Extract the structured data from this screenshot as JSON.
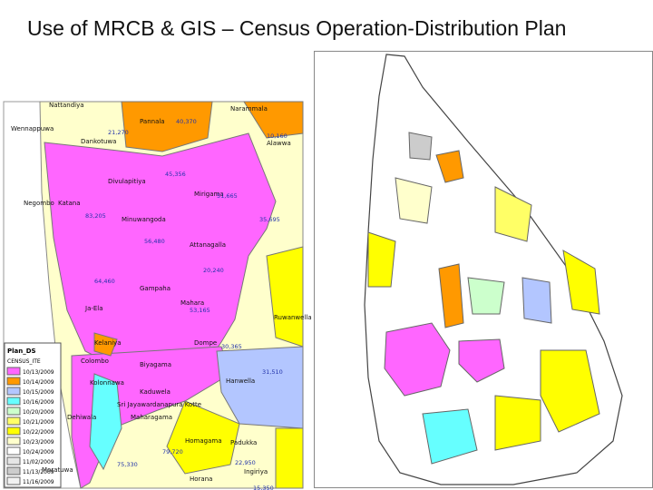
{
  "title": "Use of MRCB & GIS – Census Operation-Distribution Plan",
  "left_map": {
    "legend": {
      "title": "Plan_DS",
      "field": "CENSUS_ITE",
      "items": [
        {
          "label": "10/13/2009",
          "color": "#ff66ff"
        },
        {
          "label": "10/14/2009",
          "color": "#ff9900"
        },
        {
          "label": "10/15/2009",
          "color": "#b3c6ff"
        },
        {
          "label": "10/16/2009",
          "color": "#66ffff"
        },
        {
          "label": "10/20/2009",
          "color": "#ccffcc"
        },
        {
          "label": "10/21/2009",
          "color": "#ffff66"
        },
        {
          "label": "10/22/2009",
          "color": "#ffff00"
        },
        {
          "label": "10/23/2009",
          "color": "#ffffcc"
        },
        {
          "label": "10/24/2009",
          "color": "#ffffff"
        },
        {
          "label": "11/02/2009",
          "color": "#e6e6e6"
        },
        {
          "label": "11/13/2009",
          "color": "#cccccc"
        },
        {
          "label": "11/16/2009",
          "color": "#f2f2f2"
        }
      ]
    },
    "places": [
      "Nattandiya",
      "Narammala",
      "Wennappuwa",
      "Pannala",
      "Dankotuwa",
      "Alawwa",
      "Divulapitiya",
      "Mirigama",
      "Negombo",
      "Katana",
      "Minuwangoda",
      "Attanagalla",
      "Gampaha",
      "Mahara",
      "Ja-Ela",
      "Dompe",
      "Kelaniya",
      "Colombo",
      "Biyagama",
      "Kolonnawa",
      "Kaduwela",
      "Hanwella",
      "Sri Jayawardanapura Kotte",
      "Maharagama",
      "Dehiwala",
      "Homagama",
      "Padukka",
      "Moratuwa",
      "Horana",
      "Ingiriya",
      "Ruwanwella"
    ],
    "figures": [
      "40,370",
      "21,270",
      "10,160",
      "45,356",
      "51,665",
      "83,205",
      "56,480",
      "35,695",
      "64,460",
      "20,240",
      "53,165",
      "30,365",
      "31,510",
      "79,720",
      "75,330",
      "22,950",
      "15,350"
    ]
  }
}
